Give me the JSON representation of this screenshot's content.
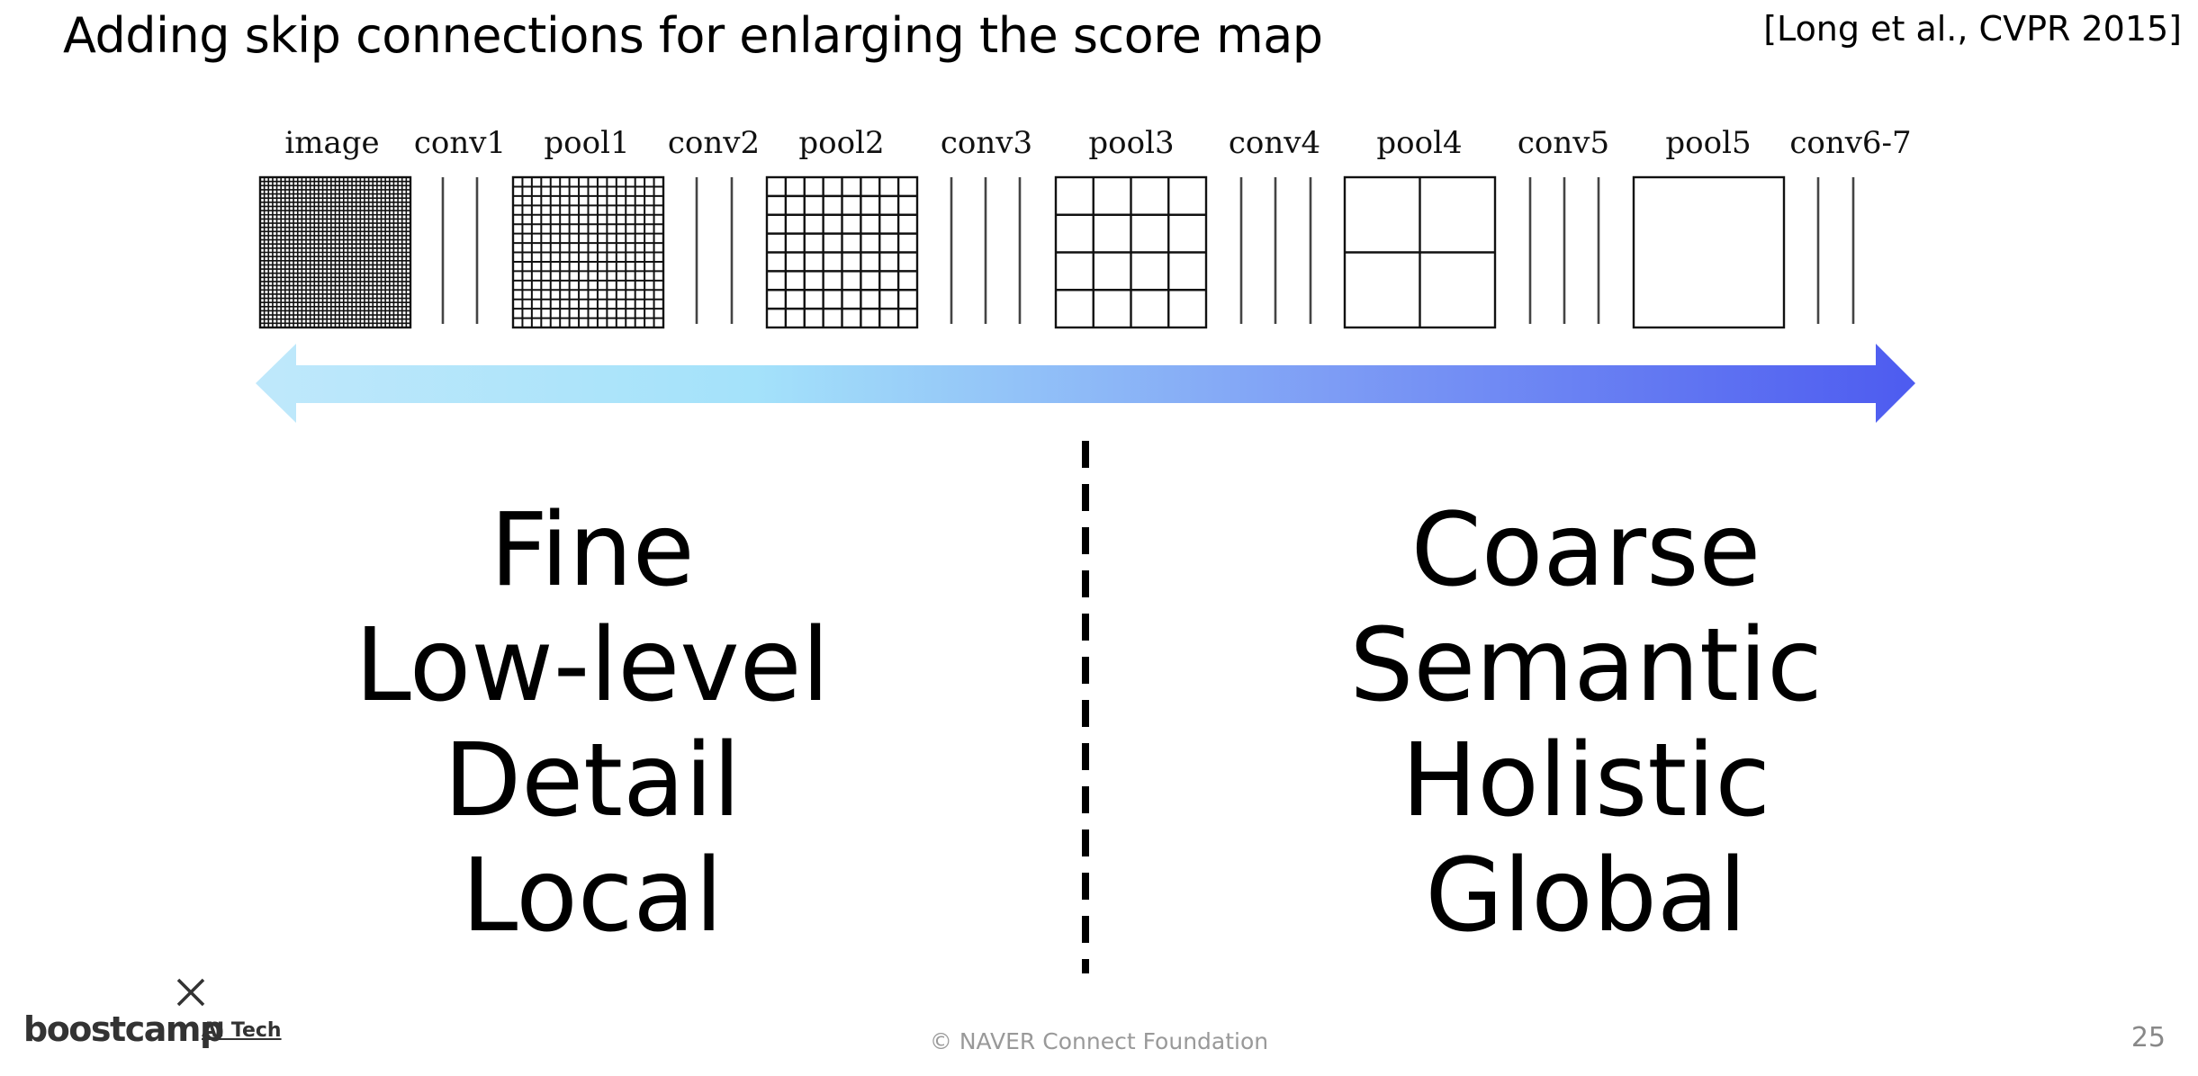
{
  "slide": {
    "title": "Adding skip connections for enlarging the score map",
    "citation": "[Long et al., CVPR 2015]"
  },
  "diagram": {
    "stages": [
      {
        "label": "image",
        "kind": "grid",
        "divisions": 36
      },
      {
        "label": "conv1",
        "kind": "lines"
      },
      {
        "label": "pool1",
        "kind": "grid",
        "divisions": 16
      },
      {
        "label": "conv2",
        "kind": "lines"
      },
      {
        "label": "pool2",
        "kind": "grid",
        "divisions": 8
      },
      {
        "label": "conv3",
        "kind": "lines"
      },
      {
        "label": "pool3",
        "kind": "grid",
        "divisions": 4
      },
      {
        "label": "conv4",
        "kind": "lines"
      },
      {
        "label": "pool4",
        "kind": "grid",
        "divisions": 2
      },
      {
        "label": "conv5",
        "kind": "lines"
      },
      {
        "label": "pool5",
        "kind": "grid",
        "divisions": 1
      },
      {
        "label": "conv6-7",
        "kind": "lines"
      }
    ],
    "arrow_colors": [
      "#bfe8fb",
      "#a4e2fa",
      "#7d9cf5",
      "#4d5bf0"
    ]
  },
  "left_words": [
    "Fine",
    "Low-level",
    "Detail",
    "Local"
  ],
  "right_words": [
    "Coarse",
    "Semantic",
    "Holistic",
    "Global"
  ],
  "footer": {
    "logo_text": "boostcamp",
    "logo_sub": "AI Tech",
    "copyright_symbol": "©",
    "copyright_text": "NAVER Connect Foundation",
    "page_number": "25"
  }
}
